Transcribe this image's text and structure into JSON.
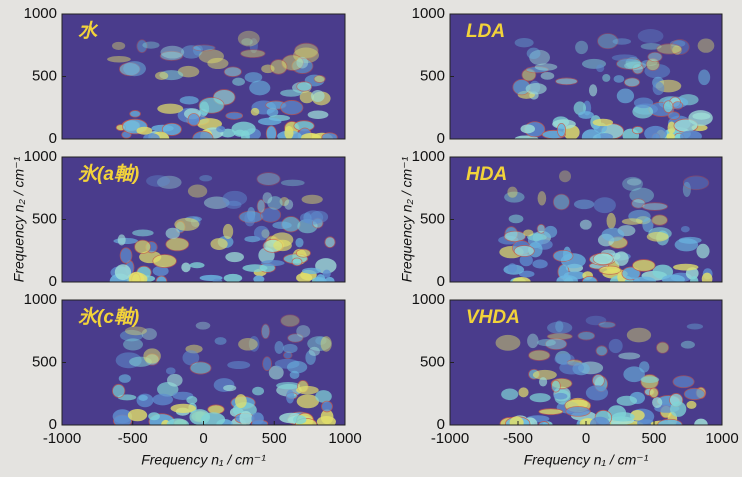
{
  "chart_data": [
    {
      "type": "heatmap",
      "title": "水",
      "xlim": [
        -1000,
        1000
      ],
      "ylim": [
        0,
        1000
      ],
      "yticks": [
        0,
        500,
        1000
      ]
    },
    {
      "type": "heatmap",
      "title": "氷(a軸)",
      "xlim": [
        -1000,
        1000
      ],
      "ylim": [
        0,
        1000
      ],
      "yticks": [
        0,
        500,
        1000
      ],
      "ylabel": "Frequency n₂ / cm⁻¹"
    },
    {
      "type": "heatmap",
      "title": "氷(c軸)",
      "xlim": [
        -1000,
        1000
      ],
      "ylim": [
        0,
        1000
      ],
      "yticks": [
        0,
        500,
        1000
      ],
      "xticks": [
        -1000,
        -500,
        0,
        500,
        1000
      ],
      "xlabel": "Frequency n₁ / cm⁻¹"
    },
    {
      "type": "heatmap",
      "title": "LDA",
      "xlim": [
        -1000,
        1000
      ],
      "ylim": [
        0,
        1000
      ],
      "yticks": [
        0,
        500,
        1000
      ]
    },
    {
      "type": "heatmap",
      "title": "HDA",
      "xlim": [
        -1000,
        1000
      ],
      "ylim": [
        0,
        1000
      ],
      "yticks": [
        0,
        500,
        1000
      ],
      "ylabel": "Frequency n₂ / cm⁻¹"
    },
    {
      "type": "heatmap",
      "title": "VHDA",
      "xlim": [
        -1000,
        1000
      ],
      "ylim": [
        0,
        1000
      ],
      "yticks": [
        0,
        500,
        1000
      ],
      "xticks": [
        -1000,
        -500,
        0,
        500,
        1000
      ],
      "xlabel": "Frequency n₁ / cm⁻¹"
    }
  ]
}
